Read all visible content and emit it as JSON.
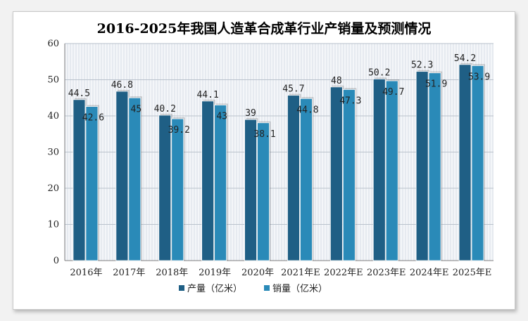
{
  "chart_data": {
    "type": "bar",
    "title": "2016-2025年我国人造革合成革行业产销量及预测情况",
    "xlabel": "",
    "ylabel": "",
    "categories": [
      "2016年",
      "2017年",
      "2018年",
      "2019年",
      "2020年",
      "2021年E",
      "2022年E",
      "2023年E",
      "2024年E",
      "2025年E"
    ],
    "series": [
      {
        "name": "产量（亿米）",
        "values": [
          44.5,
          46.8,
          40.2,
          44.1,
          39,
          45.7,
          48,
          50.2,
          52.3,
          54.2
        ],
        "color": "#1f5f85"
      },
      {
        "name": "销量（亿米）",
        "values": [
          42.6,
          45,
          39.2,
          43,
          38.1,
          44.8,
          47.3,
          49.7,
          51.9,
          53.9
        ],
        "color": "#2a8ab8"
      }
    ],
    "ylim": [
      0,
      60
    ],
    "yticks": [
      "0",
      "10",
      "20",
      "30",
      "40",
      "50",
      "60"
    ],
    "grid": true,
    "legend_position": "bottom"
  }
}
